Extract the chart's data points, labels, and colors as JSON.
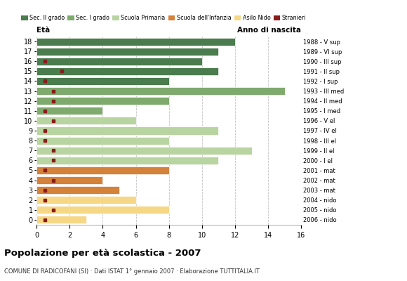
{
  "ages": [
    18,
    17,
    16,
    15,
    14,
    13,
    12,
    11,
    10,
    9,
    8,
    7,
    6,
    5,
    4,
    3,
    2,
    1,
    0
  ],
  "years": [
    "1988 - V sup",
    "1989 - VI sup",
    "1990 - III sup",
    "1991 - II sup",
    "1992 - I sup",
    "1993 - III med",
    "1994 - II med",
    "1995 - I med",
    "1996 - V el",
    "1997 - IV el",
    "1998 - III el",
    "1999 - II el",
    "2000 - I el",
    "2001 - mat",
    "2002 - mat",
    "2003 - mat",
    "2004 - nido",
    "2005 - nido",
    "2006 - nido"
  ],
  "values": [
    12,
    11,
    10,
    11,
    8,
    15,
    8,
    4,
    6,
    11,
    8,
    13,
    11,
    8,
    4,
    5,
    6,
    8,
    3
  ],
  "bar_colors": {
    "Sec. II grado": "#4a7c4e",
    "Sec. I grado": "#7faa6e",
    "Scuola Primaria": "#b8d4a0",
    "Scuola dell'Infanzia": "#d4813a",
    "Asilo Nido": "#f5d785"
  },
  "age_to_category": {
    "18": "Sec. II grado",
    "17": "Sec. II grado",
    "16": "Sec. II grado",
    "15": "Sec. II grado",
    "14": "Sec. II grado",
    "13": "Sec. I grado",
    "12": "Sec. I grado",
    "11": "Sec. I grado",
    "10": "Scuola Primaria",
    "9": "Scuola Primaria",
    "8": "Scuola Primaria",
    "7": "Scuola Primaria",
    "6": "Scuola Primaria",
    "5": "Scuola dell'Infanzia",
    "4": "Scuola dell'Infanzia",
    "3": "Scuola dell'Infanzia",
    "2": "Asilo Nido",
    "1": "Asilo Nido",
    "0": "Asilo Nido"
  },
  "stranieri_x": {
    "18": 0,
    "17": 0,
    "16": 0.5,
    "15": 1.5,
    "14": 0.5,
    "13": 1.0,
    "12": 1.0,
    "11": 0.5,
    "10": 1.0,
    "9": 0.5,
    "8": 0.5,
    "7": 1.0,
    "6": 1.0,
    "5": 0.5,
    "4": 1.0,
    "3": 0.5,
    "2": 0.5,
    "1": 1.0,
    "0": 0.5
  },
  "title": "Popolazione per età scolastica - 2007",
  "subtitle": "COMUNE DI RADICOFANI (SI) · Dati ISTAT 1° gennaio 2007 · Elaborazione TUTTITALIA.IT",
  "xlabel_left": "Età",
  "xlabel_right": "Anno di nascita",
  "xlim": [
    0,
    16
  ],
  "bg_color": "#ffffff",
  "grid_color": "#aaaaaa",
  "stranieri_color": "#8b1a1a"
}
